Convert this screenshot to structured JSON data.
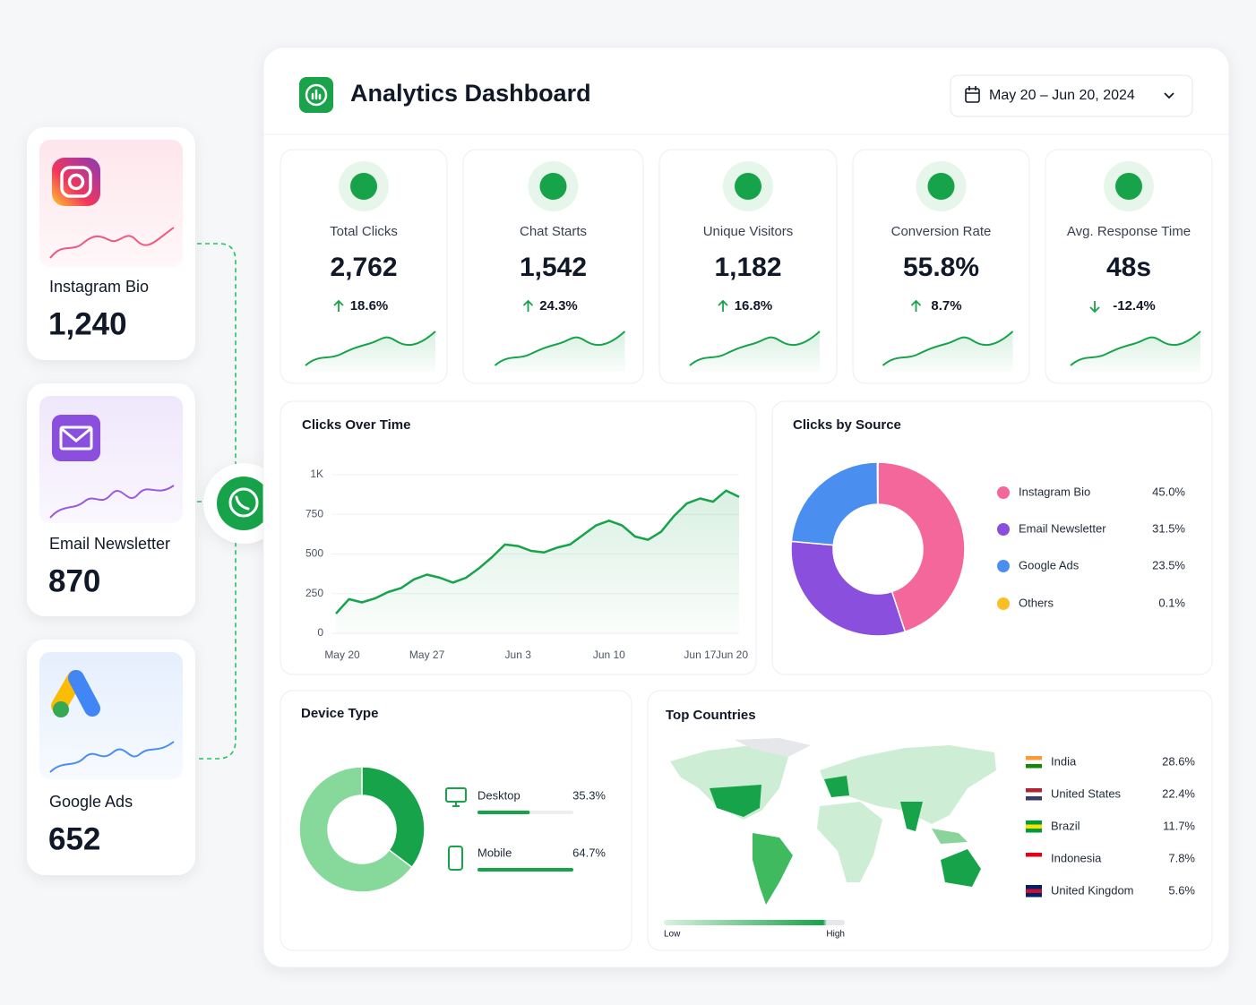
{
  "header": {
    "title": "Analytics Dashboard",
    "date_range": "May 20 – Jun 20, 2024"
  },
  "sources": [
    {
      "name": "Instagram Bio",
      "value": "1,240"
    },
    {
      "name": "Email Newsletter",
      "value": "870"
    },
    {
      "name": "Google Ads",
      "value": "652"
    }
  ],
  "kpis": [
    {
      "label": "Total Clicks",
      "value": "2,762",
      "change": "18.6%"
    },
    {
      "label": "Chat Starts",
      "value": "1,542",
      "change": "24.3%"
    },
    {
      "label": "Unique Visitors",
      "value": "1,182",
      "change": "16.8%"
    },
    {
      "label": "Conversion Rate",
      "value": "55.8%",
      "change": "8.7%"
    },
    {
      "label": "Avg. Response Time",
      "value": "48s",
      "change": "-12.4%"
    }
  ],
  "clicks_over_time": {
    "type": "line",
    "title": "Clicks Over Time",
    "categories": [
      "May 20",
      null,
      null,
      null,
      null,
      null,
      null,
      "May 27",
      null,
      null,
      null,
      null,
      null,
      null,
      "Jun 3",
      null,
      null,
      null,
      null,
      null,
      null,
      "Jun 10",
      null,
      null,
      null,
      null,
      null,
      null,
      "Jun 17",
      null,
      null,
      "Jun 20"
    ],
    "values": [
      124,
      215,
      195,
      220,
      260,
      285,
      340,
      370,
      350,
      320,
      350,
      410,
      480,
      560,
      550,
      520,
      510,
      540,
      560,
      620,
      680,
      710,
      680,
      610,
      590,
      640,
      740,
      820,
      850,
      830,
      900,
      860
    ],
    "color": "#16a34a",
    "ylim": [
      0,
      1000
    ],
    "yticks": [
      0,
      250,
      500,
      750,
      {
        "value": 1000,
        "label": "1K"
      }
    ],
    "grid": true
  },
  "clicks_by_source": {
    "type": "donut",
    "title": "Clicks by Source",
    "categories": [
      "Instagram Bio",
      "Email Newsletter",
      "Google Ads",
      "Others"
    ],
    "values": [
      45.0,
      31.5,
      23.5,
      0.1
    ],
    "value_labels": [
      "45.0%",
      "31.5%",
      "23.5%",
      "0.1%"
    ],
    "colors": [
      "#f4679a",
      "#8a4fdc",
      "#4a8ff0",
      "#fbbf24"
    ]
  },
  "device_type": {
    "type": "donut",
    "title": "Device Type",
    "categories": [
      "Desktop",
      "Mobile"
    ],
    "values": [
      35.3,
      64.7
    ],
    "value_labels": [
      "35.3%",
      "64.7%"
    ],
    "colors": [
      "#16a34a",
      "#86d99a"
    ]
  },
  "top_countries": {
    "title": "Top Countries",
    "categories": [
      "India",
      "United States",
      "Brazil",
      "Indonesia",
      "United Kingdom"
    ],
    "values": [
      28.6,
      22.4,
      11.7,
      7.8,
      5.6
    ],
    "value_labels": [
      "28.6%",
      "22.4%",
      "11.7%",
      "7.8%",
      "5.6%"
    ],
    "legend_low": "Low",
    "legend_high": "High"
  }
}
